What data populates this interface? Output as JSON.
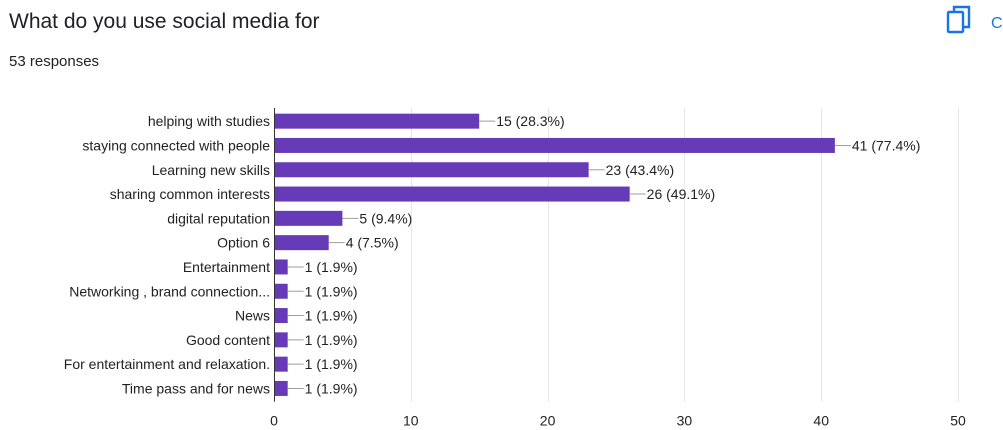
{
  "header": {
    "title": "What do you use social media for",
    "responses": "53 responses",
    "copy_button": {
      "icon": "copy-icon",
      "label": "C",
      "color": "#1a73e8"
    }
  },
  "chart_data": {
    "type": "bar",
    "orientation": "horizontal",
    "categories": [
      "helping with studies",
      "staying connected with people",
      "Learning new skills",
      "sharing common interests",
      "digital reputation",
      "Option 6",
      "Entertainment",
      "Networking , brand connection...",
      "News",
      "Good content",
      "For entertainment and relaxation.",
      "Time pass and for news"
    ],
    "values": [
      15,
      41,
      23,
      26,
      5,
      4,
      1,
      1,
      1,
      1,
      1,
      1
    ],
    "data_labels": [
      "15 (28.3%)",
      "41 (77.4%)",
      "23 (43.4%)",
      "26 (49.1%)",
      "5 (9.4%)",
      "4 (7.5%)",
      "1 (1.9%)",
      "1 (1.9%)",
      "1 (1.9%)",
      "1 (1.9%)",
      "1 (1.9%)",
      "1 (1.9%)"
    ],
    "xlim": [
      0,
      50
    ],
    "xticks": [
      0,
      10,
      20,
      30,
      40,
      50
    ],
    "grid": true,
    "legend": "none",
    "bar_color": "#673ab7",
    "grid_color": "#e6e6e6",
    "leader_color": "#9e9e9e"
  }
}
